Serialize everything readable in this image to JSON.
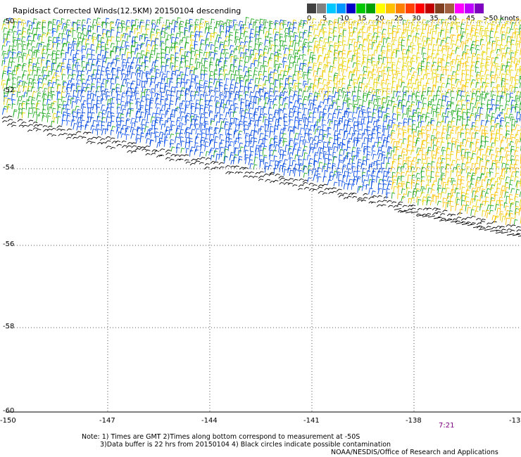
{
  "title": "Rapidsact Corrected Winds(12.5KM) 20150104 descending",
  "colorbar": {
    "labels": [
      "0",
      "5",
      "10",
      "15",
      "20",
      "25",
      "30",
      "35",
      "40",
      "45",
      ">50 knots"
    ],
    "colors": [
      "#404040",
      "#808080",
      "#00c8ff",
      "#0096ff",
      "#0000c8",
      "#00c800",
      "#00a000",
      "#ffff00",
      "#ffc000",
      "#ff8000",
      "#ff4000",
      "#ff0000",
      "#c00000",
      "#804020",
      "#a06040",
      "#ff00ff",
      "#c000ff",
      "#8000c0"
    ]
  },
  "lat_labels": [
    "-50",
    "-52",
    "-54",
    "-56",
    "-58",
    "-60"
  ],
  "lon_labels": [
    "-150",
    "-147",
    "-144",
    "-141",
    "-138",
    "-13"
  ],
  "pass_time": "7:21",
  "notes": [
    "Note: 1) Times are GMT 2)Times along bottom correspond to measurement at -50S",
    "3)Data buffer is 22 hrs from 20150104 4) Black circles indicate possible contamination",
    "NOAA/NESDIS/Office of Research and Applications"
  ]
}
